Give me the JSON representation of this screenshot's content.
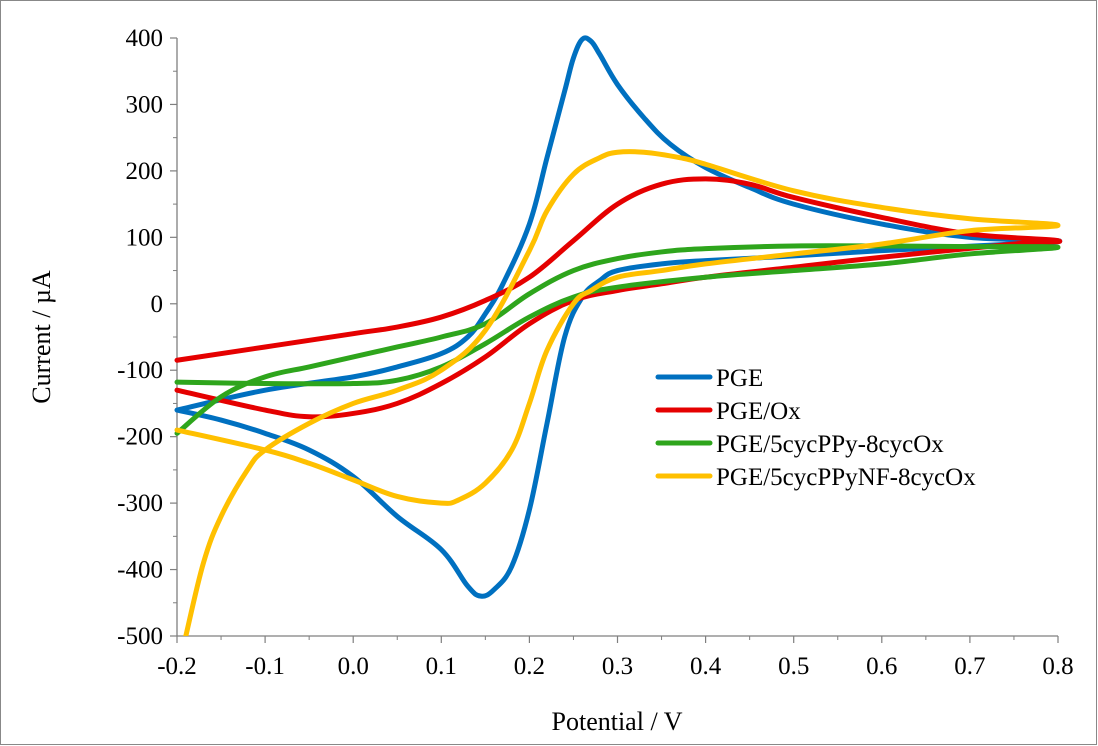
{
  "chart_data": {
    "type": "line",
    "title": "",
    "xlabel": "Potential / V",
    "ylabel": "Current / µA",
    "xlim": [
      -0.2,
      0.8
    ],
    "ylim": [
      -500,
      400
    ],
    "x_ticks": [
      "-0.2",
      "-0.1",
      "0.0",
      "0.1",
      "0.2",
      "0.3",
      "0.4",
      "0.5",
      "0.6",
      "0.7",
      "0.8"
    ],
    "y_ticks": [
      "400",
      "300",
      "200",
      "100",
      "0",
      "-100",
      "-200",
      "-300",
      "-400",
      "-500"
    ],
    "grid": false,
    "legend_position": "right-center",
    "series": [
      {
        "name": "PGE",
        "color": "#0070C0",
        "x": [
          -0.2,
          -0.1,
          0.0,
          0.05,
          0.1,
          0.13,
          0.15,
          0.17,
          0.2,
          0.22,
          0.24,
          0.25,
          0.26,
          0.27,
          0.28,
          0.3,
          0.33,
          0.36,
          0.4,
          0.45,
          0.5,
          0.6,
          0.7,
          0.8,
          0.75,
          0.6,
          0.5,
          0.4,
          0.35,
          0.3,
          0.28,
          0.26,
          0.24,
          0.22,
          0.2,
          0.18,
          0.16,
          0.145,
          0.13,
          0.1,
          0.05,
          0.0,
          -0.05,
          -0.1,
          -0.15,
          -0.2
        ],
        "y": [
          -160,
          -130,
          -110,
          -95,
          -75,
          -50,
          -15,
          30,
          120,
          220,
          320,
          370,
          398,
          395,
          375,
          330,
          280,
          240,
          205,
          175,
          150,
          120,
          100,
          95,
          90,
          80,
          72,
          65,
          60,
          50,
          35,
          10,
          -50,
          -180,
          -310,
          -395,
          -430,
          -440,
          -425,
          -370,
          -320,
          -260,
          -220,
          -195,
          -175,
          -160
        ]
      },
      {
        "name": "PGE/Ox",
        "color": "#E50000",
        "x": [
          -0.2,
          -0.1,
          0.0,
          0.05,
          0.1,
          0.15,
          0.2,
          0.25,
          0.3,
          0.35,
          0.4,
          0.45,
          0.5,
          0.6,
          0.7,
          0.8,
          0.75,
          0.6,
          0.5,
          0.4,
          0.35,
          0.3,
          0.25,
          0.2,
          0.15,
          0.1,
          0.05,
          0.0,
          -0.05,
          -0.1,
          -0.2
        ],
        "y": [
          -85,
          -65,
          -45,
          -35,
          -20,
          5,
          40,
          95,
          150,
          180,
          188,
          180,
          160,
          130,
          105,
          95,
          90,
          70,
          55,
          40,
          30,
          20,
          5,
          -30,
          -80,
          -120,
          -150,
          -165,
          -170,
          -160,
          -130
        ]
      },
      {
        "name": "PGE/5cycPPy-8cycOx",
        "color": "#2EA51C",
        "x": [
          -0.2,
          -0.15,
          -0.1,
          -0.05,
          0.0,
          0.05,
          0.1,
          0.15,
          0.2,
          0.25,
          0.3,
          0.35,
          0.4,
          0.5,
          0.6,
          0.7,
          0.8,
          0.7,
          0.6,
          0.5,
          0.4,
          0.3,
          0.25,
          0.2,
          0.15,
          0.1,
          0.05,
          0.0,
          -0.1,
          -0.2
        ],
        "y": [
          -195,
          -140,
          -110,
          -95,
          -80,
          -65,
          -50,
          -30,
          15,
          50,
          68,
          78,
          83,
          87,
          87,
          86,
          85,
          75,
          60,
          50,
          40,
          25,
          10,
          -20,
          -60,
          -95,
          -115,
          -120,
          -120,
          -118
        ]
      },
      {
        "name": "PGE/5cycPPyNF-8cycOx",
        "color": "#FFC000",
        "x": [
          -0.19,
          -0.17,
          -0.15,
          -0.12,
          -0.1,
          -0.05,
          0.0,
          0.05,
          0.1,
          0.15,
          0.2,
          0.22,
          0.25,
          0.28,
          0.3,
          0.33,
          0.37,
          0.4,
          0.5,
          0.6,
          0.7,
          0.8,
          0.7,
          0.6,
          0.5,
          0.4,
          0.35,
          0.3,
          0.27,
          0.25,
          0.22,
          0.2,
          0.18,
          0.15,
          0.12,
          0.1,
          0.05,
          0.0,
          -0.05,
          -0.1,
          -0.2
        ],
        "y": [
          -500,
          -390,
          -320,
          -250,
          -220,
          -180,
          -150,
          -130,
          -100,
          -40,
          80,
          140,
          195,
          220,
          228,
          228,
          220,
          210,
          170,
          145,
          128,
          118,
          110,
          90,
          75,
          60,
          50,
          40,
          20,
          0,
          -70,
          -150,
          -220,
          -270,
          -295,
          -300,
          -290,
          -265,
          -240,
          -220,
          -190
        ]
      }
    ]
  }
}
